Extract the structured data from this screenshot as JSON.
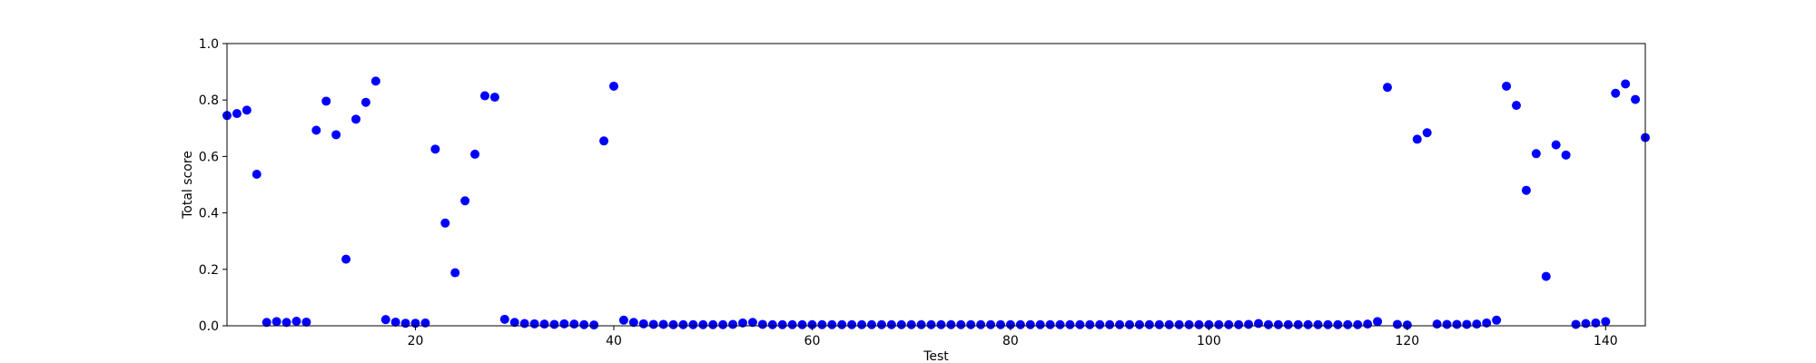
{
  "chart_data": {
    "type": "scatter",
    "title": "",
    "xlabel": "Test",
    "ylabel": "Total score",
    "xlim": [
      1,
      144
    ],
    "ylim": [
      0.0,
      1.0
    ],
    "xticks": [
      20,
      40,
      60,
      80,
      100,
      120,
      140
    ],
    "yticks": [
      0.0,
      0.2,
      0.4,
      0.6,
      0.8,
      1.0
    ],
    "xtick_labels": [
      "20",
      "40",
      "60",
      "80",
      "100",
      "120",
      "140"
    ],
    "ytick_labels": [
      "0.0",
      "0.2",
      "0.4",
      "0.6",
      "0.8",
      "1.0"
    ],
    "grid": false,
    "marker_color": "#0000ff",
    "series": [
      {
        "x": [
          1,
          2,
          3,
          4,
          5,
          6,
          7,
          8,
          9,
          10,
          11,
          12,
          13,
          14,
          15,
          16,
          17,
          18,
          19,
          20,
          21,
          22,
          23,
          24,
          25,
          26,
          27,
          28,
          29,
          30,
          31,
          32,
          33,
          34,
          35,
          36,
          37,
          38,
          39,
          40,
          41,
          42,
          43,
          44,
          45,
          46,
          47,
          48,
          49,
          50,
          51,
          52,
          53,
          54,
          55,
          56,
          57,
          58,
          59,
          60,
          61,
          62,
          63,
          64,
          65,
          66,
          67,
          68,
          69,
          70,
          71,
          72,
          73,
          74,
          75,
          76,
          77,
          78,
          79,
          80,
          81,
          82,
          83,
          84,
          85,
          86,
          87,
          88,
          89,
          90,
          91,
          92,
          93,
          94,
          95,
          96,
          97,
          98,
          99,
          100,
          101,
          102,
          103,
          104,
          105,
          106,
          107,
          108,
          109,
          110,
          111,
          112,
          113,
          114,
          115,
          116,
          117,
          118,
          119,
          120,
          121,
          122,
          123,
          124,
          125,
          126,
          127,
          128,
          129,
          130,
          131,
          132,
          133,
          134,
          135,
          136,
          137,
          138,
          139,
          140,
          141,
          142,
          143,
          144
        ],
        "y": [
          0.745,
          0.752,
          0.764,
          0.537,
          0.012,
          0.015,
          0.012,
          0.016,
          0.013,
          0.693,
          0.796,
          0.677,
          0.236,
          0.732,
          0.792,
          0.867,
          0.022,
          0.013,
          0.009,
          0.009,
          0.01,
          0.626,
          0.364,
          0.188,
          0.443,
          0.608,
          0.815,
          0.81,
          0.023,
          0.012,
          0.008,
          0.007,
          0.006,
          0.005,
          0.007,
          0.006,
          0.004,
          0.003,
          0.655,
          0.849,
          0.02,
          0.012,
          0.007,
          0.005,
          0.005,
          0.004,
          0.004,
          0.004,
          0.004,
          0.004,
          0.004,
          0.005,
          0.01,
          0.012,
          0.005,
          0.004,
          0.004,
          0.004,
          0.004,
          0.004,
          0.004,
          0.004,
          0.004,
          0.004,
          0.004,
          0.004,
          0.004,
          0.004,
          0.004,
          0.004,
          0.004,
          0.004,
          0.004,
          0.004,
          0.004,
          0.004,
          0.004,
          0.004,
          0.004,
          0.004,
          0.004,
          0.004,
          0.004,
          0.004,
          0.004,
          0.004,
          0.004,
          0.004,
          0.004,
          0.004,
          0.004,
          0.004,
          0.004,
          0.004,
          0.004,
          0.004,
          0.004,
          0.004,
          0.004,
          0.004,
          0.004,
          0.004,
          0.004,
          0.005,
          0.008,
          0.004,
          0.004,
          0.004,
          0.004,
          0.004,
          0.004,
          0.004,
          0.004,
          0.004,
          0.004,
          0.006,
          0.015,
          0.845,
          0.005,
          0.003,
          0.661,
          0.684,
          0.006,
          0.005,
          0.005,
          0.005,
          0.006,
          0.01,
          0.02,
          0.849,
          0.781,
          0.48,
          0.61,
          0.175,
          0.641,
          0.605,
          0.005,
          0.008,
          0.01,
          0.015,
          0.824,
          0.857,
          0.802,
          0.667
        ]
      }
    ]
  }
}
